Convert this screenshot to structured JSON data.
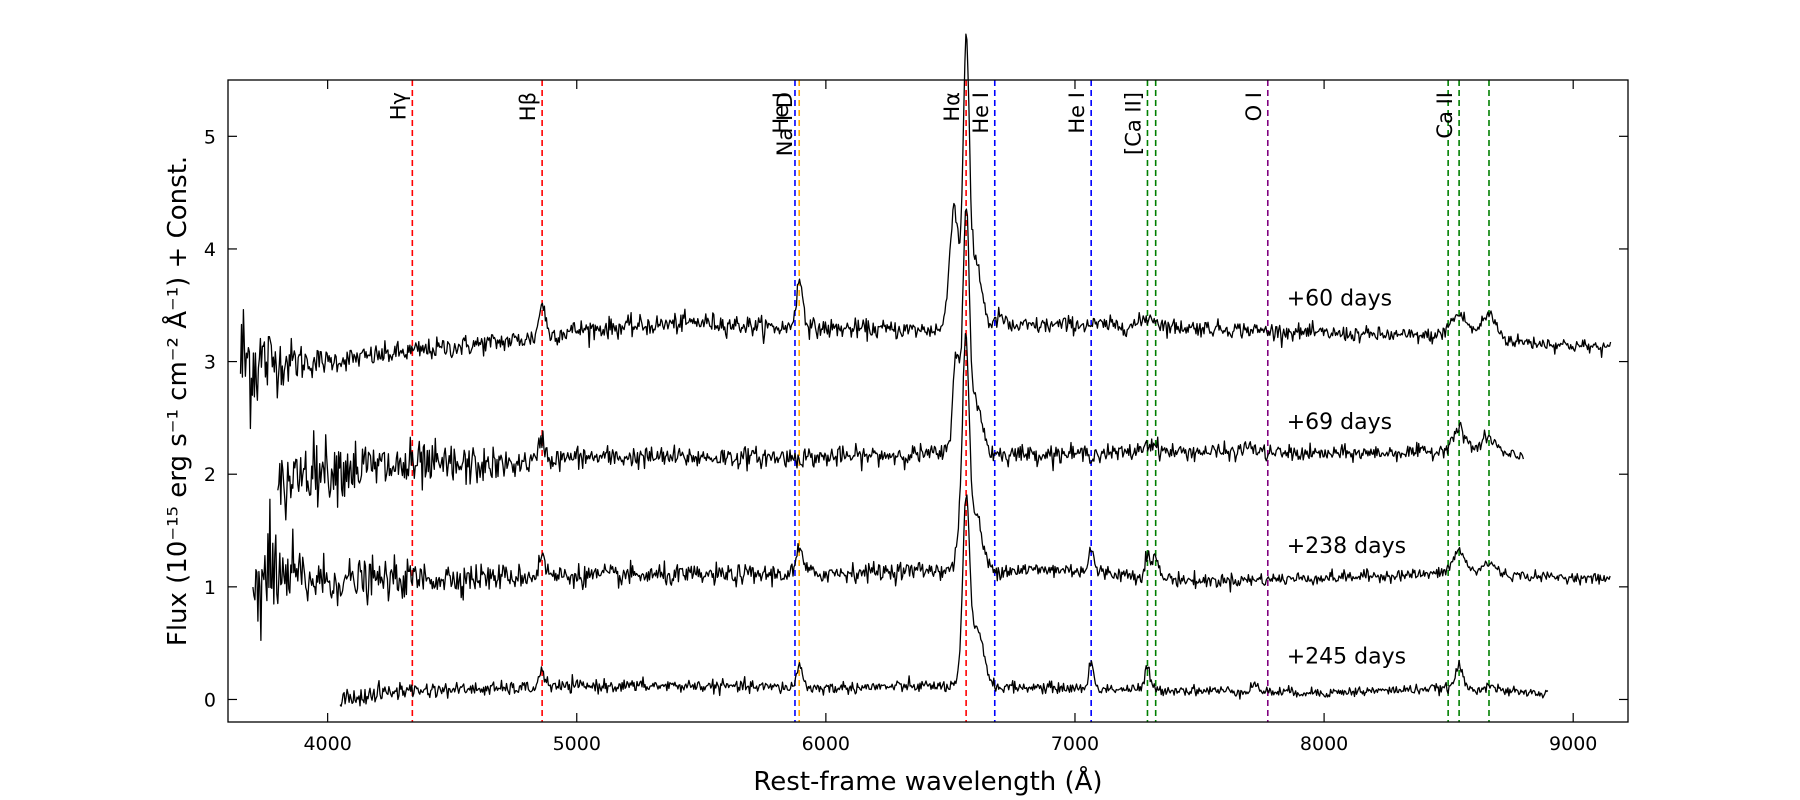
{
  "chart_data": {
    "type": "line",
    "xlabel": "Rest-frame wavelength (Å)",
    "ylabel": "Flux (10⁻¹⁵ erg s⁻¹ cm⁻² Å⁻¹) + Const.",
    "xlim": [
      3600,
      9220
    ],
    "ylim": [
      -0.2,
      5.5
    ],
    "xticks": [
      4000,
      5000,
      6000,
      7000,
      8000,
      9000
    ],
    "yticks": [
      0,
      1,
      2,
      3,
      4,
      5
    ],
    "xtick_labels": [
      "4000",
      "5000",
      "6000",
      "7000",
      "8000",
      "9000"
    ],
    "ytick_labels": [
      "0",
      "1",
      "2",
      "3",
      "4",
      "5"
    ],
    "grid": false,
    "line_markers": [
      {
        "label": "Hγ",
        "x": 4340,
        "color": "#ff0000"
      },
      {
        "label": "Hβ",
        "x": 4861,
        "color": "#ff0000"
      },
      {
        "label": "He I",
        "x": 5876,
        "color": "#0000ff"
      },
      {
        "label": "Na I D",
        "x": 5893,
        "color": "#ffa500"
      },
      {
        "label": "Hα",
        "x": 6563,
        "color": "#ff0000"
      },
      {
        "label": "He I",
        "x": 6678,
        "color": "#0000ff"
      },
      {
        "label": "He I",
        "x": 7065,
        "color": "#0000ff"
      },
      {
        "label": "[Ca II]",
        "x": 7291,
        "color": "#008000"
      },
      {
        "label": "",
        "x": 7324,
        "color": "#008000"
      },
      {
        "label": "O I",
        "x": 7774,
        "color": "#800080"
      },
      {
        "label": "",
        "x": 8498,
        "color": "#008000"
      },
      {
        "label": "Ca II",
        "x": 8542,
        "color": "#008000"
      },
      {
        "label": "",
        "x": 8662,
        "color": "#008000"
      }
    ],
    "series": [
      {
        "name": "+60 days",
        "offset": 3.0,
        "noise": [
          [
            3650,
            0.35
          ],
          [
            3800,
            0.12
          ],
          [
            4000,
            0.05
          ],
          [
            9150,
            0.03
          ]
        ],
        "points": [
          [
            3650,
            0.0
          ],
          [
            4000,
            0.0
          ],
          [
            4300,
            0.08
          ],
          [
            4800,
            0.2
          ],
          [
            5000,
            0.28
          ],
          [
            5500,
            0.35
          ],
          [
            5800,
            0.3
          ],
          [
            6400,
            0.28
          ],
          [
            7000,
            0.33
          ],
          [
            7500,
            0.3
          ],
          [
            8000,
            0.25
          ],
          [
            8500,
            0.22
          ],
          [
            9150,
            0.12
          ]
        ],
        "features": [
          [
            4861,
            0.3,
            12
          ],
          [
            5895,
            0.4,
            15
          ],
          [
            6515,
            1.1,
            18
          ],
          [
            6563,
            2.4,
            12
          ],
          [
            6600,
            0.6,
            25
          ],
          [
            6700,
            0.1,
            15
          ],
          [
            7300,
            0.08,
            30
          ],
          [
            8542,
            0.2,
            35
          ],
          [
            8662,
            0.22,
            30
          ]
        ],
        "label_x": 7850,
        "label_y": 3.5
      },
      {
        "name": "+69 days",
        "offset": 2.0,
        "noise": [
          [
            3800,
            0.15
          ],
          [
            4500,
            0.1
          ],
          [
            4800,
            0.05
          ],
          [
            8800,
            0.03
          ]
        ],
        "points": [
          [
            3800,
            -0.15
          ],
          [
            3900,
            0.05
          ],
          [
            4700,
            0.08
          ],
          [
            5000,
            0.15
          ],
          [
            5500,
            0.15
          ],
          [
            6000,
            0.15
          ],
          [
            6400,
            0.18
          ],
          [
            7000,
            0.18
          ],
          [
            7500,
            0.2
          ],
          [
            8000,
            0.18
          ],
          [
            8500,
            0.2
          ],
          [
            8800,
            0.15
          ]
        ],
        "features": [
          [
            4861,
            0.2,
            12
          ],
          [
            6525,
            0.9,
            15
          ],
          [
            6563,
            2.0,
            12
          ],
          [
            6600,
            0.5,
            25
          ],
          [
            7300,
            0.08,
            30
          ],
          [
            7700,
            0.06,
            20
          ],
          [
            8542,
            0.2,
            30
          ],
          [
            8662,
            0.15,
            30
          ]
        ],
        "label_x": 7850,
        "label_y": 2.4
      },
      {
        "name": "+238 days",
        "offset": 1.0,
        "noise": [
          [
            3700,
            0.3
          ],
          [
            3800,
            0.2
          ],
          [
            4000,
            0.1
          ],
          [
            4800,
            0.05
          ],
          [
            9150,
            0.02
          ]
        ],
        "points": [
          [
            3700,
            0.1
          ],
          [
            4000,
            0.05
          ],
          [
            4500,
            0.08
          ],
          [
            5000,
            0.1
          ],
          [
            5500,
            0.1
          ],
          [
            6000,
            0.12
          ],
          [
            6400,
            0.15
          ],
          [
            7000,
            0.15
          ],
          [
            7500,
            0.05
          ],
          [
            8000,
            0.08
          ],
          [
            8500,
            0.12
          ],
          [
            9150,
            0.07
          ]
        ],
        "features": [
          [
            4861,
            0.2,
            12
          ],
          [
            5895,
            0.2,
            15
          ],
          [
            6545,
            0.5,
            15
          ],
          [
            6563,
            1.7,
            12
          ],
          [
            6600,
            0.5,
            25
          ],
          [
            7065,
            0.2,
            10
          ],
          [
            7291,
            0.2,
            10
          ],
          [
            7324,
            0.2,
            10
          ],
          [
            8542,
            0.2,
            25
          ],
          [
            8662,
            0.1,
            30
          ]
        ],
        "label_x": 7850,
        "label_y": 1.3
      },
      {
        "name": "+245 days",
        "offset": 0.0,
        "noise": [
          [
            4050,
            0.05
          ],
          [
            4500,
            0.03
          ],
          [
            8900,
            0.02
          ]
        ],
        "points": [
          [
            4050,
            0.0
          ],
          [
            4300,
            0.08
          ],
          [
            4800,
            0.1
          ],
          [
            5000,
            0.12
          ],
          [
            5500,
            0.12
          ],
          [
            6000,
            0.1
          ],
          [
            6400,
            0.12
          ],
          [
            7000,
            0.1
          ],
          [
            7500,
            0.08
          ],
          [
            8000,
            0.06
          ],
          [
            8500,
            0.1
          ],
          [
            8900,
            0.05
          ]
        ],
        "features": [
          [
            4861,
            0.15,
            12
          ],
          [
            5895,
            0.2,
            12
          ],
          [
            6563,
            1.6,
            14
          ],
          [
            6610,
            0.5,
            25
          ],
          [
            7065,
            0.22,
            10
          ],
          [
            7291,
            0.2,
            10
          ],
          [
            7720,
            0.06,
            15
          ],
          [
            8542,
            0.2,
            15
          ],
          [
            8662,
            0.05,
            20
          ]
        ],
        "label_x": 7850,
        "label_y": 0.32
      }
    ]
  }
}
